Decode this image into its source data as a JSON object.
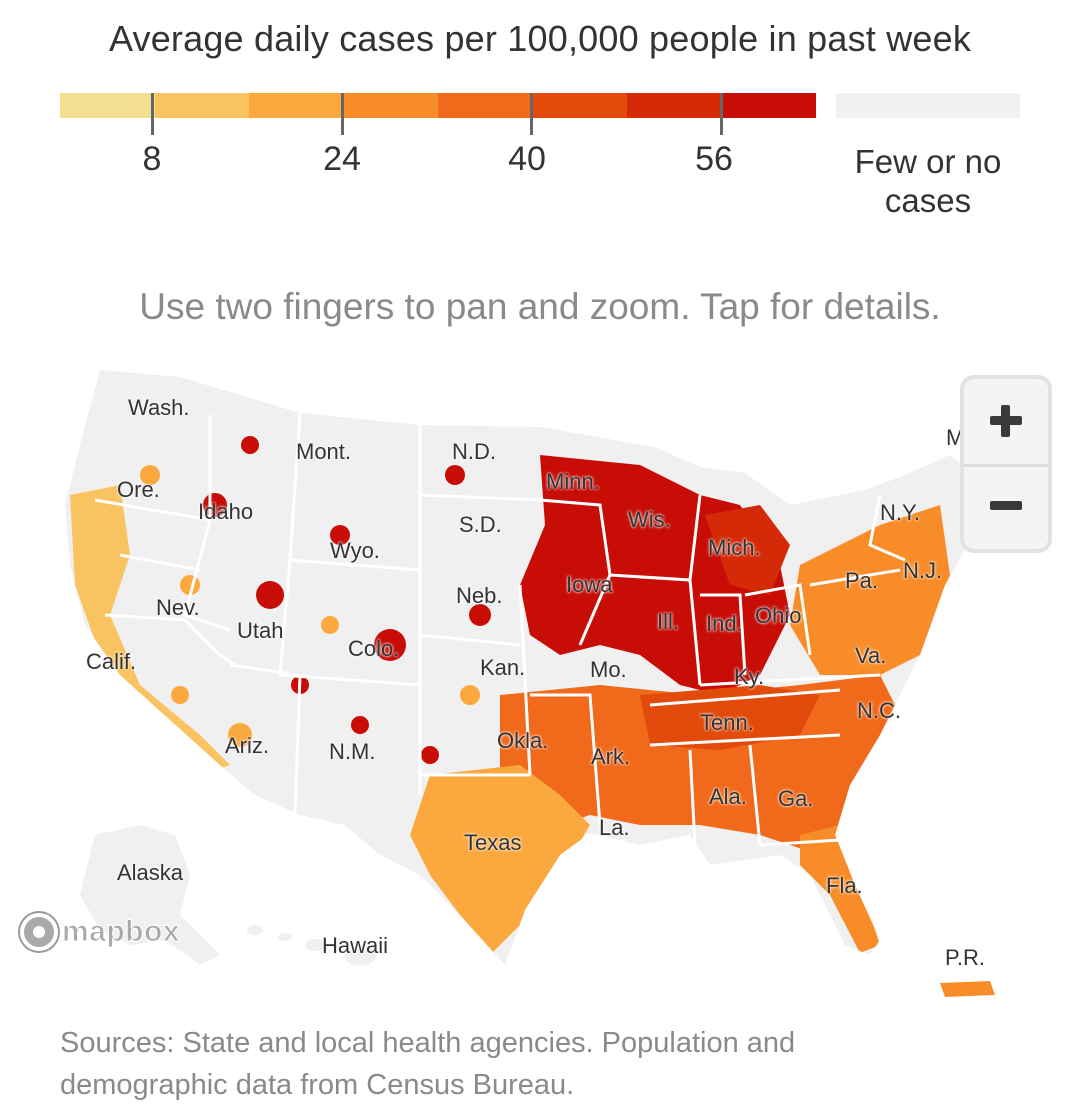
{
  "legend": {
    "title": "Average daily cases per 100,000 people in past week",
    "colors": [
      "#f2df8f",
      "#f9c361",
      "#fba83e",
      "#f88c28",
      "#f1691a",
      "#e34b0c",
      "#d52a08",
      "#c80d07"
    ],
    "ticks": [
      "8",
      "24",
      "40",
      "56"
    ],
    "no_cases_color": "#f1f1f1",
    "no_cases_label": "Few or no cases"
  },
  "hint": "Use two fingers to pan and zoom. Tap for details.",
  "map": {
    "land_color": "#f0f0f0",
    "labels": {
      "wash": "Wash.",
      "ore": "Ore.",
      "idaho": "Idaho",
      "mont": "Mont.",
      "nd": "N.D.",
      "minn": "Minn.",
      "wyo": "Wyo.",
      "sd": "S.D.",
      "wis": "Wis.",
      "mich": "Mich.",
      "ny": "N.Y.",
      "nev": "Nev.",
      "utah": "Utah",
      "neb": "Neb.",
      "iowa": "Iowa",
      "pa": "Pa.",
      "nj": "N.J.",
      "calif": "Calif.",
      "colo": "Colo.",
      "kan": "Kan.",
      "mo": "Mo.",
      "ill": "Ill.",
      "ind": "Ind.",
      "ohio": "Ohio",
      "va": "Va.",
      "ky": "Ky.",
      "nc": "N.C.",
      "tenn": "Tenn.",
      "ariz": "Ariz.",
      "nm": "N.M.",
      "okla": "Okla.",
      "ark": "Ark.",
      "ala": "Ala.",
      "ga": "Ga.",
      "la": "La.",
      "texas": "Texas",
      "fla": "Fla.",
      "alaska": "Alaska",
      "hawaii": "Hawaii",
      "pr": "P.R.",
      "maine_partial": "M"
    }
  },
  "zoom": {
    "in_icon": "plus-icon",
    "out_icon": "minus-icon"
  },
  "attribution": {
    "logo_text": "mapbox"
  },
  "sources": "Sources: State and local health agencies. Population and demographic data from Census Bureau."
}
